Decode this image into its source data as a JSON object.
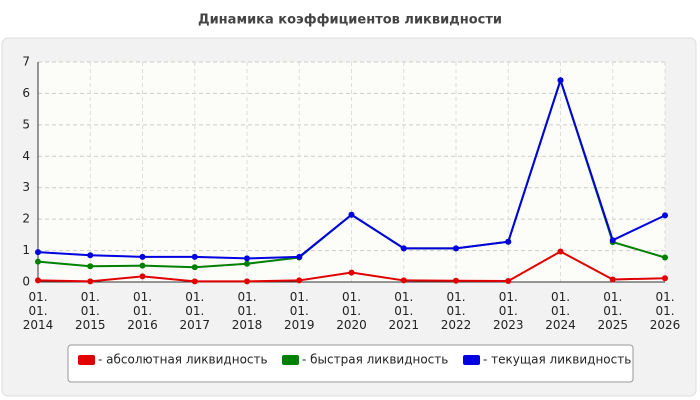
{
  "chart_data": {
    "type": "line",
    "title": "Динамика коэффициентов ликвидности",
    "categories": [
      "01. 01. 2014",
      "01. 01. 2015",
      "01. 01. 2016",
      "01. 01. 2017",
      "01. 01. 2018",
      "01. 01. 2019",
      "01. 01. 2020",
      "01. 01. 2021",
      "01. 01. 2022",
      "01. 01. 2023",
      "01. 01. 2024",
      "01. 01. 2025",
      "01. 01. 2026"
    ],
    "series": [
      {
        "name": "- абсолютная ликвидность",
        "color": "#e00000",
        "values": [
          0.05,
          0.02,
          0.18,
          0.02,
          0.02,
          0.05,
          0.3,
          0.05,
          0.04,
          0.03,
          0.97,
          0.08,
          0.12
        ]
      },
      {
        "name": "- быстрая ликвидность",
        "color": "#008000",
        "values": [
          0.65,
          0.5,
          0.52,
          0.47,
          0.58,
          0.78,
          2.14,
          1.07,
          1.07,
          1.28,
          6.42,
          1.27,
          0.78
        ]
      },
      {
        "name": "- текущая ликвидность",
        "color": "#0000e0",
        "values": [
          0.95,
          0.85,
          0.8,
          0.8,
          0.75,
          0.8,
          2.14,
          1.07,
          1.07,
          1.28,
          6.42,
          1.33,
          2.12
        ]
      }
    ],
    "ylim": [
      0,
      7
    ],
    "yticks": [
      0,
      1,
      2,
      3,
      4,
      5,
      6,
      7
    ],
    "grid": true
  }
}
